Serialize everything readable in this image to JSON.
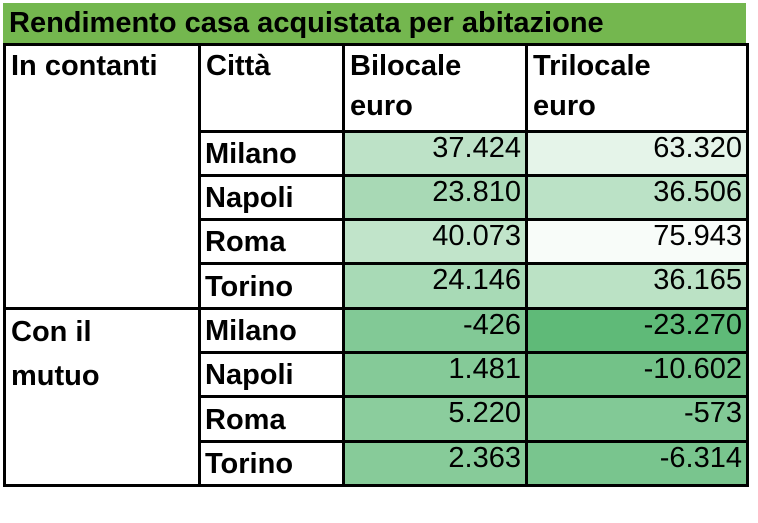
{
  "title": "Rendimento casa acquistata per abitazione",
  "headers": {
    "group": "In contanti",
    "city": "Città",
    "bilocale": "Bilocale\neuro",
    "trilocale": "Trilocale\neuro"
  },
  "groups": [
    {
      "label": "In contanti",
      "rows": [
        {
          "city": "Milano",
          "bilocale": "37.424",
          "trilocale": "63.320"
        },
        {
          "city": "Napoli",
          "bilocale": "23.810",
          "trilocale": "36.506"
        },
        {
          "city": "Roma",
          "bilocale": "40.073",
          "trilocale": "75.943"
        },
        {
          "city": "Torino",
          "bilocale": "24.146",
          "trilocale": "36.165"
        }
      ]
    },
    {
      "label": "Con il\nmutuo",
      "rows": [
        {
          "city": "Milano",
          "bilocale": "-426",
          "trilocale": "-23.270"
        },
        {
          "city": "Napoli",
          "bilocale": "1.481",
          "trilocale": "-10.602"
        },
        {
          "city": "Roma",
          "bilocale": "5.220",
          "trilocale": "-573"
        },
        {
          "city": "Torino",
          "bilocale": "2.363",
          "trilocale": "-6.314"
        }
      ]
    }
  ],
  "colors": {
    "title_bg": "#74b74f",
    "scale_min": "#5fba78",
    "scale_max": "#f8fcf9"
  },
  "chart_data": {
    "type": "table",
    "title": "Rendimento casa acquistata per abitazione",
    "columns": [
      "Città",
      "Bilocale euro",
      "Trilocale euro"
    ],
    "series": [
      {
        "name": "In contanti",
        "categories": [
          "Milano",
          "Napoli",
          "Roma",
          "Torino"
        ],
        "bilocale": [
          37424,
          23810,
          40073,
          24146
        ],
        "trilocale": [
          63320,
          36506,
          75943,
          36165
        ]
      },
      {
        "name": "Con il mutuo",
        "categories": [
          "Milano",
          "Napoli",
          "Roma",
          "Torino"
        ],
        "bilocale": [
          -426,
          1481,
          5220,
          2363
        ],
        "trilocale": [
          -23270,
          -10602,
          -573,
          -6314
        ]
      }
    ]
  }
}
